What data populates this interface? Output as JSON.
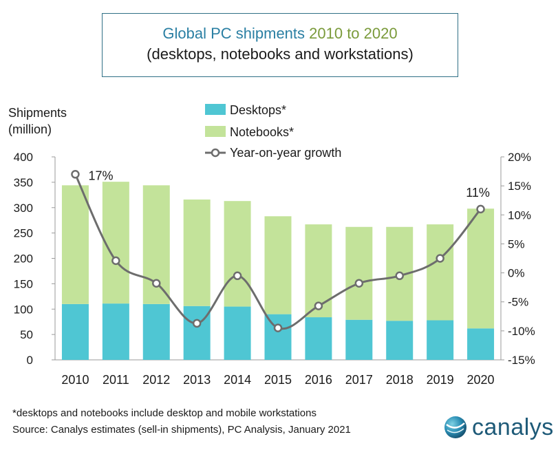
{
  "title": {
    "part1": "Global PC shipments ",
    "part2": "2010 to 2020",
    "line2": "(desktops, notebooks and workstations)"
  },
  "chart_data": {
    "type": "bar",
    "stacked": true,
    "categories": [
      "2010",
      "2011",
      "2012",
      "2013",
      "2014",
      "2015",
      "2016",
      "2017",
      "2018",
      "2019",
      "2020"
    ],
    "series": [
      {
        "name": "Desktops*",
        "type": "bar",
        "color": "#4fc6d3",
        "values": [
          110,
          111,
          110,
          106,
          105,
          90,
          84,
          79,
          77,
          78,
          62
        ]
      },
      {
        "name": "Notebooks*",
        "type": "bar",
        "color": "#c3e39a",
        "values": [
          234,
          240,
          234,
          210,
          208,
          193,
          183,
          183,
          185,
          189,
          236
        ]
      },
      {
        "name": "Year-on-year growth",
        "type": "line",
        "axis": "right",
        "color": "#6d6d6d",
        "values": [
          17.0,
          2.1,
          -1.8,
          -8.7,
          -0.5,
          -9.5,
          -5.7,
          -1.8,
          -0.5,
          2.5,
          11.0
        ]
      }
    ],
    "ylabel": "Shipments\n(million)",
    "ylabel_lines": [
      "Shipments",
      "(million)"
    ],
    "ylim": [
      0,
      400
    ],
    "yticks": [
      "0",
      "50",
      "100",
      "150",
      "200",
      "250",
      "300",
      "350",
      "400"
    ],
    "y2lim": [
      -15,
      20
    ],
    "y2ticks": [
      "-15%",
      "-10%",
      "-5%",
      "0%",
      "5%",
      "10%",
      "15%",
      "20%"
    ],
    "annotations": [
      {
        "index": 0,
        "text": "17%"
      },
      {
        "index": 10,
        "text": "11%"
      }
    ],
    "legend_placement": "top-center",
    "grid": false
  },
  "footnote": "*desktops and notebooks include desktop and mobile workstations",
  "source": "Source: Canalys estimates (sell-in shipments), PC Analysis, January 2021",
  "logo_text": "canalys"
}
